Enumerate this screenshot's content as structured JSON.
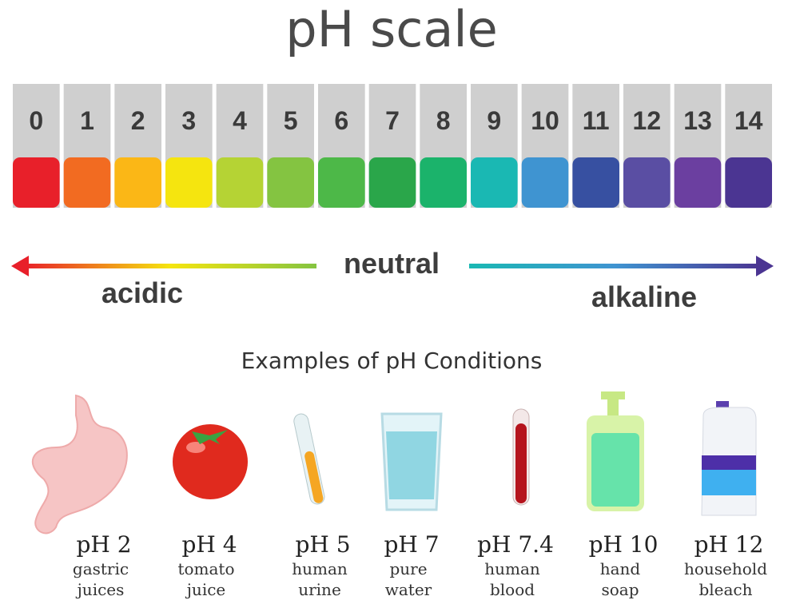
{
  "title": "pH scale",
  "scale": [
    {
      "label": "0",
      "color": "#e8202a"
    },
    {
      "label": "1",
      "color": "#f26b21"
    },
    {
      "label": "2",
      "color": "#fbb716"
    },
    {
      "label": "3",
      "color": "#f5e50f"
    },
    {
      "label": "4",
      "color": "#b5d334"
    },
    {
      "label": "5",
      "color": "#84c441"
    },
    {
      "label": "6",
      "color": "#4db848"
    },
    {
      "label": "7",
      "color": "#2aa64a"
    },
    {
      "label": "8",
      "color": "#1bb36b"
    },
    {
      "label": "9",
      "color": "#1ab8b3"
    },
    {
      "label": "10",
      "color": "#3f94d1"
    },
    {
      "label": "11",
      "color": "#3750a1"
    },
    {
      "label": "12",
      "color": "#5a4ea3"
    },
    {
      "label": "13",
      "color": "#6b3fa0"
    },
    {
      "label": "14",
      "color": "#4b3592"
    }
  ],
  "arrow": {
    "left": "acidic",
    "center": "neutral",
    "right": "alkaline"
  },
  "examples": {
    "title": "Examples of pH Conditions",
    "items": [
      {
        "ph": "pH 2",
        "name": [
          "gastric",
          "juices"
        ]
      },
      {
        "ph": "pH 4",
        "name": [
          "tomato",
          "juice"
        ]
      },
      {
        "ph": "pH 5",
        "name": [
          "human",
          "urine"
        ]
      },
      {
        "ph": "pH 7",
        "name": [
          "pure",
          "water"
        ]
      },
      {
        "ph": "pH 7.4",
        "name": [
          "human",
          "blood"
        ]
      },
      {
        "ph": "pH 10",
        "name": [
          "hand",
          "soap"
        ]
      },
      {
        "ph": "pH 12",
        "name": [
          "household",
          "bleach"
        ]
      }
    ]
  }
}
